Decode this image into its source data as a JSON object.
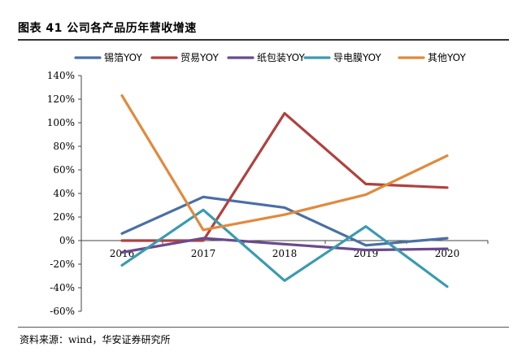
{
  "title": "图表 41  公司各产品历年营收增速",
  "source": "资料来源：wind，华安证券研究所",
  "chart_data": {
    "type": "line",
    "categories": [
      "2016",
      "2017",
      "2018",
      "2019",
      "2020"
    ],
    "ylim": [
      -60,
      140
    ],
    "yticks": [
      -60,
      -40,
      -20,
      0,
      20,
      40,
      60,
      80,
      100,
      120,
      140
    ],
    "ytick_labels": [
      "-60%",
      "-40%",
      "-20%",
      "0%",
      "20%",
      "40%",
      "60%",
      "80%",
      "100%",
      "120%",
      "140%"
    ],
    "xlabel": "",
    "ylabel": "",
    "legend_position": "top",
    "series": [
      {
        "name": "锡箔YOY",
        "color": "#4a6fa5",
        "values": [
          6,
          37,
          28,
          -4,
          2
        ]
      },
      {
        "name": "贸易YOY",
        "color": "#b0413e",
        "values": [
          0,
          0,
          108,
          48,
          45
        ]
      },
      {
        "name": "纸包装YOY",
        "color": "#6a4a8c",
        "values": [
          -10,
          2,
          -3,
          -8,
          -7
        ]
      },
      {
        "name": "导电膜YOY",
        "color": "#3a9bb0",
        "values": [
          -21,
          26,
          -34,
          12,
          -39
        ]
      },
      {
        "name": "其他YOY",
        "color": "#e08a3c",
        "values": [
          123,
          9,
          22,
          39,
          72
        ]
      }
    ]
  }
}
